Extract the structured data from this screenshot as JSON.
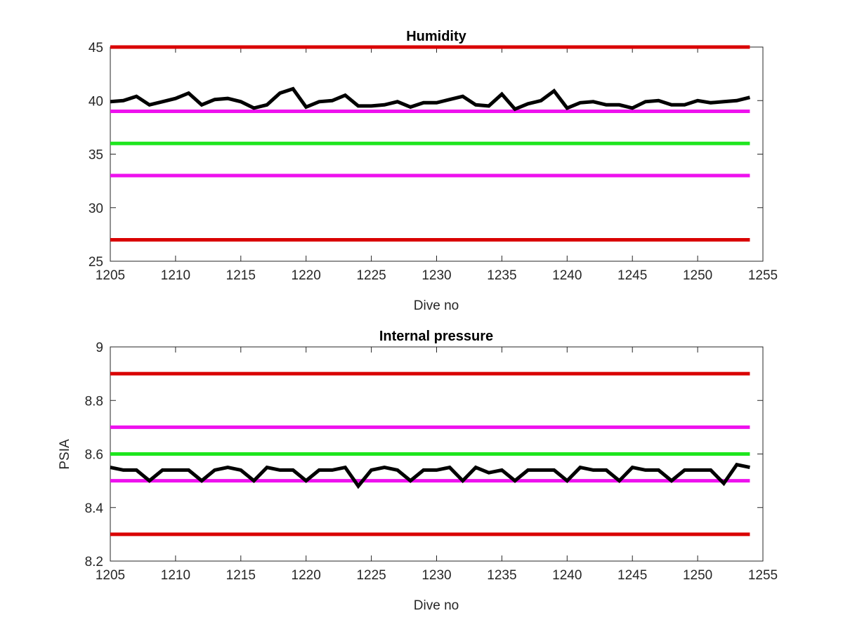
{
  "colors": {
    "limit": "#d90000",
    "warning": "#ee11ee",
    "nominal": "#1ee61e",
    "measurement": "#000000"
  },
  "chart_data": [
    {
      "type": "line",
      "title": "Humidity",
      "xlabel": "Dive no",
      "ylabel": "",
      "xlim": [
        1205,
        1255
      ],
      "ylim": [
        25,
        45
      ],
      "xticks": [
        "1205",
        "1210",
        "1215",
        "1220",
        "1225",
        "1230",
        "1235",
        "1240",
        "1245",
        "1250",
        "1255"
      ],
      "yticks": [
        "25",
        "30",
        "35",
        "40",
        "45"
      ],
      "reference_lines": [
        {
          "y": 45,
          "color": "limit"
        },
        {
          "y": 39,
          "color": "warning"
        },
        {
          "y": 36,
          "color": "nominal"
        },
        {
          "y": 33,
          "color": "warning"
        },
        {
          "y": 27,
          "color": "limit"
        }
      ],
      "series": [
        {
          "color": "measurement",
          "x": [
            1205,
            1206,
            1207,
            1208,
            1209,
            1210,
            1211,
            1212,
            1213,
            1214,
            1215,
            1216,
            1217,
            1218,
            1219,
            1220,
            1221,
            1222,
            1223,
            1224,
            1225,
            1226,
            1227,
            1228,
            1229,
            1230,
            1231,
            1232,
            1233,
            1234,
            1235,
            1236,
            1237,
            1238,
            1239,
            1240,
            1241,
            1242,
            1243,
            1244,
            1245,
            1246,
            1247,
            1248,
            1249,
            1250,
            1251,
            1252,
            1253,
            1254
          ],
          "values": [
            39.9,
            40.0,
            40.4,
            39.6,
            39.9,
            40.2,
            40.7,
            39.6,
            40.1,
            40.2,
            39.9,
            39.3,
            39.6,
            40.7,
            41.1,
            39.4,
            39.9,
            40.0,
            40.5,
            39.5,
            39.5,
            39.6,
            39.9,
            39.4,
            39.8,
            39.8,
            40.1,
            40.4,
            39.6,
            39.5,
            40.6,
            39.2,
            39.7,
            40.0,
            40.9,
            39.3,
            39.8,
            39.9,
            39.6,
            39.6,
            39.3,
            39.9,
            40.0,
            39.6,
            39.6,
            40.0,
            39.8,
            39.9,
            40.0,
            40.3
          ]
        }
      ]
    },
    {
      "type": "line",
      "title": "Internal pressure",
      "xlabel": "Dive no",
      "ylabel": "PSIA",
      "xlim": [
        1205,
        1255
      ],
      "ylim": [
        8.2,
        9.0
      ],
      "xticks": [
        "1205",
        "1210",
        "1215",
        "1220",
        "1225",
        "1230",
        "1235",
        "1240",
        "1245",
        "1250",
        "1255"
      ],
      "yticks": [
        "8.2",
        "8.4",
        "8.6",
        "8.8",
        "9"
      ],
      "reference_lines": [
        {
          "y": 8.9,
          "color": "limit"
        },
        {
          "y": 8.7,
          "color": "warning"
        },
        {
          "y": 8.6,
          "color": "nominal"
        },
        {
          "y": 8.5,
          "color": "warning"
        },
        {
          "y": 8.3,
          "color": "limit"
        }
      ],
      "series": [
        {
          "color": "measurement",
          "x": [
            1205,
            1206,
            1207,
            1208,
            1209,
            1210,
            1211,
            1212,
            1213,
            1214,
            1215,
            1216,
            1217,
            1218,
            1219,
            1220,
            1221,
            1222,
            1223,
            1224,
            1225,
            1226,
            1227,
            1228,
            1229,
            1230,
            1231,
            1232,
            1233,
            1234,
            1235,
            1236,
            1237,
            1238,
            1239,
            1240,
            1241,
            1242,
            1243,
            1244,
            1245,
            1246,
            1247,
            1248,
            1249,
            1250,
            1251,
            1252,
            1253,
            1254
          ],
          "values": [
            8.55,
            8.54,
            8.54,
            8.5,
            8.54,
            8.54,
            8.54,
            8.5,
            8.54,
            8.55,
            8.54,
            8.5,
            8.55,
            8.54,
            8.54,
            8.5,
            8.54,
            8.54,
            8.55,
            8.48,
            8.54,
            8.55,
            8.54,
            8.5,
            8.54,
            8.54,
            8.55,
            8.5,
            8.55,
            8.53,
            8.54,
            8.5,
            8.54,
            8.54,
            8.54,
            8.5,
            8.55,
            8.54,
            8.54,
            8.5,
            8.55,
            8.54,
            8.54,
            8.5,
            8.54,
            8.54,
            8.54,
            8.49,
            8.56,
            8.55
          ]
        }
      ]
    }
  ]
}
